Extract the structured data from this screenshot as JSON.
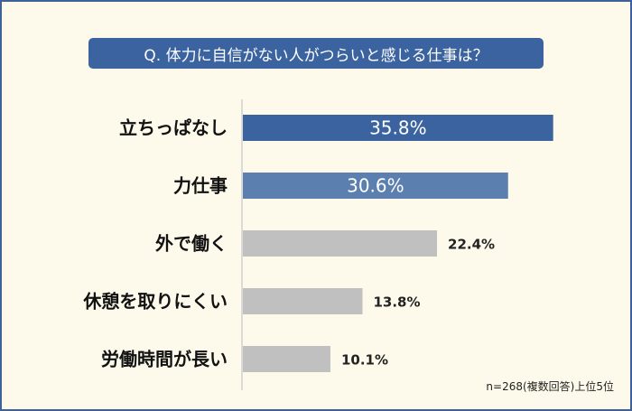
{
  "chart_data": {
    "type": "bar",
    "orientation": "horizontal",
    "title": "Q. 体力に自信がない人がつらいと感じる仕事は？",
    "categories": [
      "立ちっぱなし",
      "力仕事",
      "外で働く",
      "休憩を取りにくい",
      "労働時間が長い"
    ],
    "values": [
      35.8,
      30.6,
      22.4,
      13.8,
      10.1
    ],
    "value_labels": [
      "35.8%",
      "30.6%",
      "22.4%",
      "13.8%",
      "10.1%"
    ],
    "unit": "%",
    "colors": [
      "#3a63a0",
      "#5b7fae",
      "#c0c0c0",
      "#c0c0c0",
      "#c0c0c0"
    ],
    "grid": false,
    "footnote": "n=268(複数回答)上位5位"
  }
}
